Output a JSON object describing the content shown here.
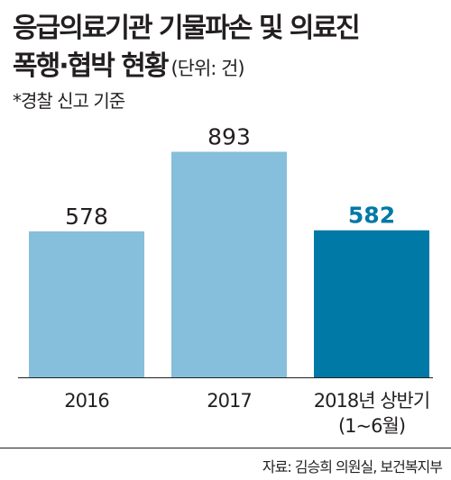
{
  "header": {
    "title_line1": "응급의료기관 기물파손 및 의료진",
    "title_line2": "폭행·협박 현황",
    "unit": "(단위: 건)",
    "note": "*경찰 신고 기준"
  },
  "chart_data": {
    "type": "bar",
    "title": "응급의료기관 기물파손 및 의료진 폭행·협박 현황",
    "unit": "(단위: 건)",
    "categories": [
      "2016",
      "2017",
      "2018년 상반기\n(1~6월)"
    ],
    "values": [
      578,
      893,
      582
    ],
    "ylim": [
      0,
      1000
    ],
    "grid": false,
    "bar_colors": [
      "#86bfdb",
      "#86bfdb",
      "#0079a6"
    ],
    "value_label_colors": [
      "#231f20",
      "#231f20",
      "#0079a6"
    ],
    "axis_color": "#231f20"
  },
  "footer": {
    "source": "자료: 김승희 의원실, 보건복지부"
  }
}
